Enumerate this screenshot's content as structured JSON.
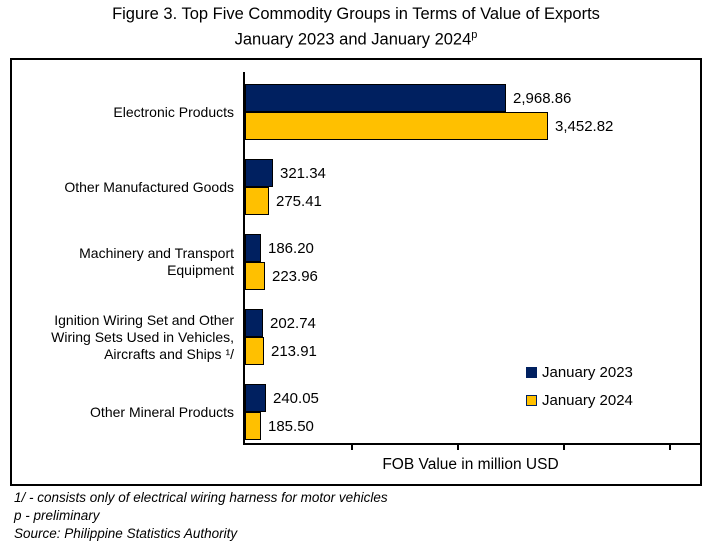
{
  "title": {
    "line1": "Figure 3. Top Five Commodity Groups in Terms of Value of Exports",
    "line2": "January 2023 and January 2024",
    "line2_superscript": "p"
  },
  "chart_data": {
    "type": "bar",
    "orientation": "horizontal",
    "title": "Figure 3. Top Five Commodity Groups in Terms of Value of Exports January 2023 and January 2024p",
    "categories": [
      "Electronic Products",
      "Other Manufactured Goods",
      "Machinery and Transport Equipment",
      "Ignition Wiring Set and Other Wiring Sets Used in Vehicles, Aircrafts and Ships ¹/",
      "Other Mineral Products"
    ],
    "series": [
      {
        "name": "January 2023",
        "color": "#002060",
        "values": [
          2968.86,
          321.34,
          186.2,
          202.74,
          240.05
        ],
        "labels": [
          "2,968.86",
          "321.34",
          "186.20",
          "202.74",
          "240.05"
        ]
      },
      {
        "name": "January 2024",
        "color": "#FFC000",
        "values": [
          3452.82,
          275.41,
          223.96,
          213.91,
          185.5
        ],
        "labels": [
          "3,452.82",
          "275.41",
          "223.96",
          "213.91",
          "185.50"
        ]
      }
    ],
    "xlabel": "FOB Value in million USD",
    "ylabel": "",
    "xlim": [
      0,
      5000
    ],
    "tick_labels_shown": false,
    "grid": false,
    "legend_position": "inside-right-lower"
  },
  "footnotes": [
    "1/ - consists only of electrical wiring harness for motor vehicles",
    "p - preliminary",
    "Source: Philippine Statistics Authority"
  ]
}
